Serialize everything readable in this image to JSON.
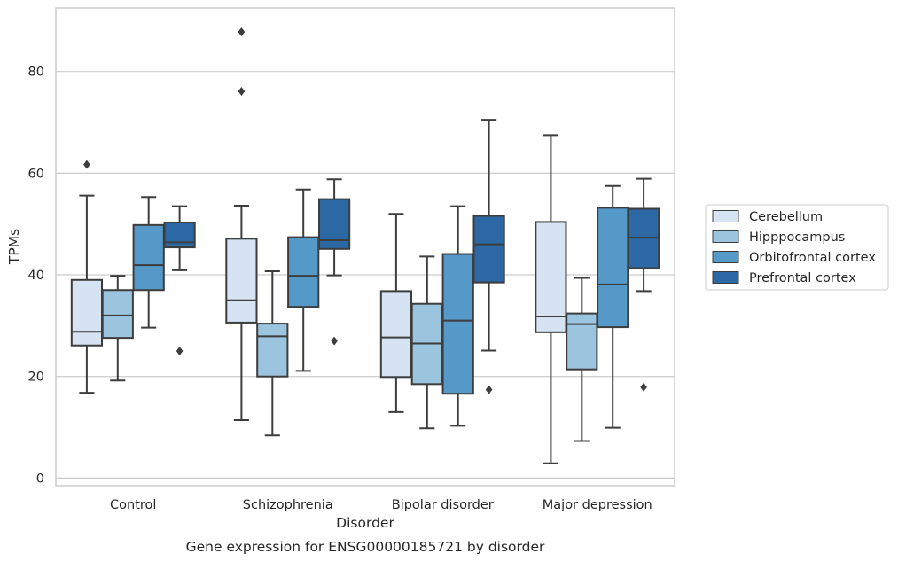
{
  "chart_data": {
    "type": "box",
    "title": "Gene expression for ENSG00000185721 by disorder",
    "xlabel": "Disorder",
    "ylabel": "TPMs",
    "ylim": [
      -1.5,
      92.5
    ],
    "yticks": [
      0,
      20,
      40,
      60,
      80
    ],
    "grid": "horizontal",
    "legend_position": "right",
    "categories": [
      "Control",
      "Schizophrenia",
      "Bipolar disorder",
      "Major depression"
    ],
    "series": [
      {
        "name": "Cerebellum",
        "color": "#d5e3f2",
        "boxes": [
          {
            "whisker_low": 16.8,
            "q1": 26.1,
            "median": 28.8,
            "q3": 39.0,
            "whisker_high": 55.6,
            "outliers": [
              61.7
            ]
          },
          {
            "whisker_low": 11.4,
            "q1": 30.6,
            "median": 35.0,
            "q3": 47.1,
            "whisker_high": 53.6,
            "outliers": []
          },
          {
            "whisker_low": 13.0,
            "q1": 19.9,
            "median": 27.7,
            "q3": 36.8,
            "whisker_high": 52.0,
            "outliers": []
          },
          {
            "whisker_low": 2.9,
            "q1": 28.7,
            "median": 31.8,
            "q3": 50.4,
            "whisker_high": 67.5,
            "outliers": []
          }
        ]
      },
      {
        "name": "Hipppocampus",
        "color": "#9bc5de",
        "boxes": [
          {
            "whisker_low": 19.2,
            "q1": 27.6,
            "median": 32.0,
            "q3": 37.0,
            "whisker_high": 39.8,
            "outliers": []
          },
          {
            "whisker_low": 8.4,
            "q1": 20.0,
            "median": 27.9,
            "q3": 30.4,
            "whisker_high": 40.7,
            "outliers": []
          },
          {
            "whisker_low": 9.8,
            "q1": 18.5,
            "median": 26.5,
            "q3": 34.3,
            "whisker_high": 43.6,
            "outliers": []
          },
          {
            "whisker_low": 7.3,
            "q1": 21.4,
            "median": 30.3,
            "q3": 32.4,
            "whisker_high": 39.4,
            "outliers": []
          }
        ]
      },
      {
        "name": "Orbitofrontal cortex",
        "color": "#5599c8",
        "boxes": [
          {
            "whisker_low": 29.6,
            "q1": 37.0,
            "median": 41.9,
            "q3": 49.8,
            "whisker_high": 55.3,
            "outliers": []
          },
          {
            "whisker_low": 21.1,
            "q1": 33.7,
            "median": 39.8,
            "q3": 47.4,
            "whisker_high": 56.8,
            "outliers": []
          },
          {
            "whisker_low": 10.3,
            "q1": 16.6,
            "median": 31.0,
            "q3": 44.1,
            "whisker_high": 53.5,
            "outliers": []
          },
          {
            "whisker_low": 9.9,
            "q1": 29.7,
            "median": 38.1,
            "q3": 53.2,
            "whisker_high": 57.5,
            "outliers": []
          }
        ]
      },
      {
        "name": "Prefrontal cortex",
        "color": "#2b68a4",
        "boxes": [
          {
            "whisker_low": 40.9,
            "q1": 45.4,
            "median": 46.4,
            "q3": 50.3,
            "whisker_high": 53.5,
            "outliers": [
              25.0
            ]
          },
          {
            "whisker_low": 39.9,
            "q1": 45.1,
            "median": 46.8,
            "q3": 54.9,
            "whisker_high": 58.8,
            "outliers": [
              27.0
            ]
          },
          {
            "whisker_low": 25.1,
            "q1": 38.5,
            "median": 46.0,
            "q3": 51.6,
            "whisker_high": 70.5,
            "outliers": [
              17.4
            ]
          },
          {
            "whisker_low": 36.8,
            "q1": 41.3,
            "median": 47.3,
            "q3": 53.0,
            "whisker_high": 58.9,
            "outliers": [
              17.9
            ]
          }
        ]
      }
    ],
    "extra_outliers": [
      {
        "category": "Schizophrenia",
        "series": "Cerebellum",
        "values": [
          76.1,
          87.8
        ]
      }
    ]
  }
}
